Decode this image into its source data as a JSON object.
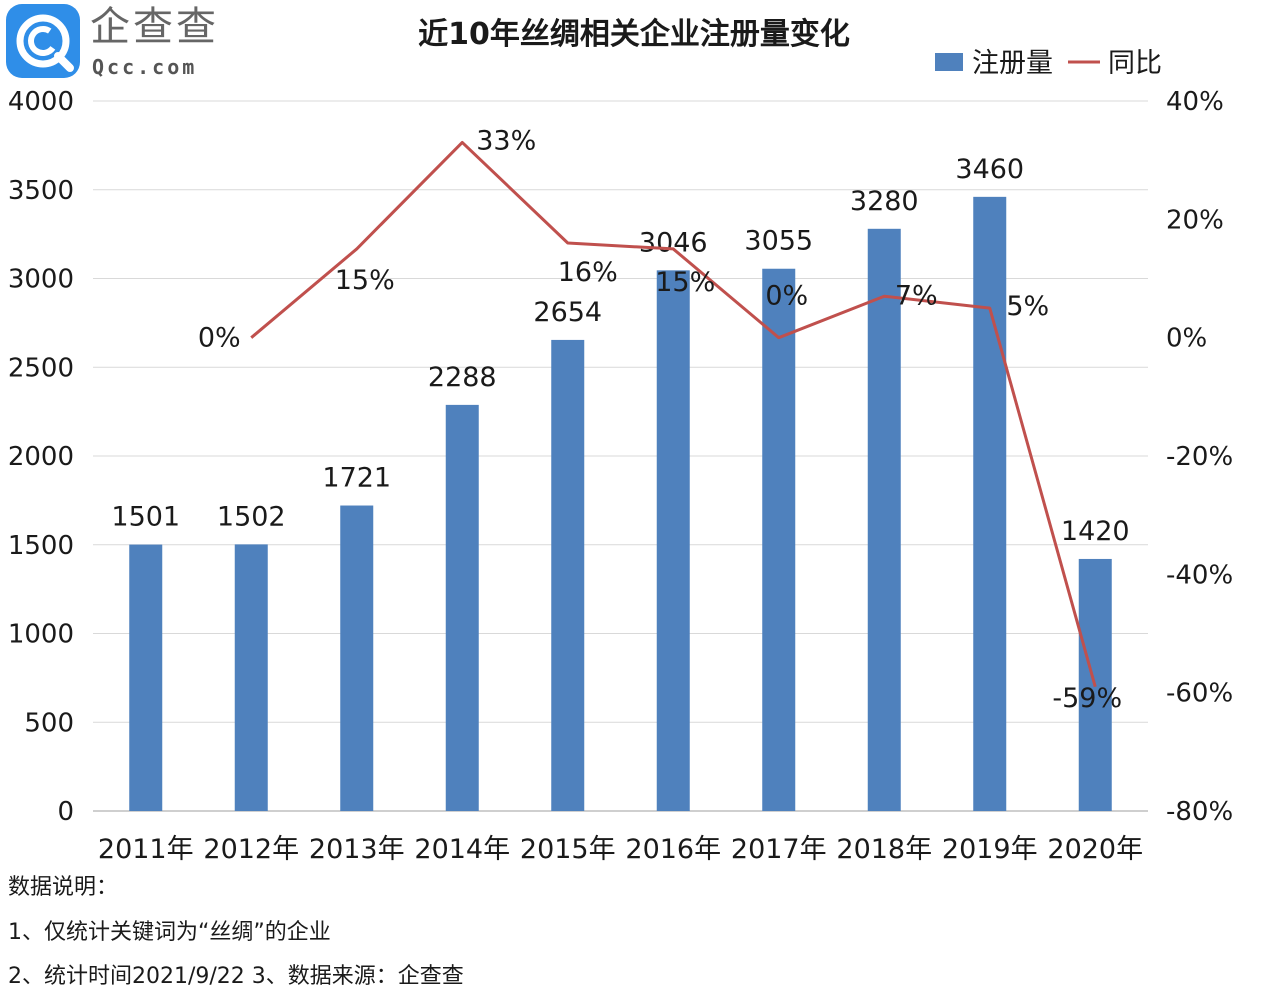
{
  "logo": {
    "name": "企查查",
    "domain": "Qcc.com",
    "icon": "magnifier-q-icon"
  },
  "chart_data": {
    "type": "bar",
    "title": "近10年丝绸相关企业注册量变化",
    "categories": [
      "2011年",
      "2012年",
      "2013年",
      "2014年",
      "2015年",
      "2016年",
      "2017年",
      "2018年",
      "2019年",
      "2020年"
    ],
    "series": [
      {
        "name": "注册量",
        "type": "bar",
        "axis": "left",
        "color": "#4f81bd",
        "values": [
          1501,
          1502,
          1721,
          2288,
          2654,
          3046,
          3055,
          3280,
          3460,
          1420
        ],
        "labels": [
          "1501",
          "1502",
          "1721",
          "2288",
          "2654",
          "3046",
          "3055",
          "3280",
          "3460",
          "1420"
        ]
      },
      {
        "name": "同比",
        "type": "line",
        "axis": "right",
        "color": "#c0504d",
        "points": [
          {
            "category": "2012年",
            "value": 0,
            "label": "0%"
          },
          {
            "category": "2013年",
            "value": 15,
            "label": "15%"
          },
          {
            "category": "2014年",
            "value": 33,
            "label": "33%"
          },
          {
            "category": "2015年",
            "value": 16,
            "label": "16%"
          },
          {
            "category": "2016年",
            "value": 15,
            "label": "15%"
          },
          {
            "category": "2017年",
            "value": 0,
            "label": "0%"
          },
          {
            "category": "2018年",
            "value": 7,
            "label": "7%"
          },
          {
            "category": "2019年",
            "value": 5,
            "label": "5%"
          },
          {
            "category": "2020年",
            "value": -59,
            "label": "-59%"
          }
        ]
      }
    ],
    "y_left": {
      "min": 0,
      "max": 4000,
      "ticks": [
        0,
        500,
        1000,
        1500,
        2000,
        2500,
        3000,
        3500,
        4000
      ],
      "tick_labels": [
        "0",
        "500",
        "1000",
        "1500",
        "2000",
        "2500",
        "3000",
        "3500",
        "4000"
      ]
    },
    "y_right": {
      "min": -80,
      "max": 40,
      "ticks": [
        -80,
        -60,
        -40,
        -20,
        0,
        20,
        40
      ],
      "tick_labels": [
        "-80%",
        "-60%",
        "-40%",
        "-20%",
        "0%",
        "20%",
        "40%"
      ]
    },
    "grid": true,
    "legend_position": "top-right"
  },
  "notes": {
    "heading": "数据说明：",
    "line1": "1、仅统计关键词为“丝绸”的企业",
    "line2": "2、统计时间2021/9/22    3、数据来源：企查查"
  }
}
